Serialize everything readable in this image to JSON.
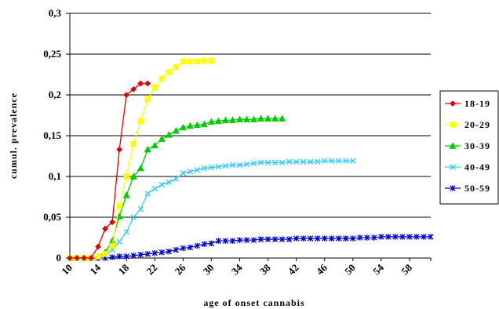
{
  "chart_data": {
    "type": "line",
    "xlabel": "age of onset cannabis",
    "ylabel": "cumul. prevalence",
    "xlim": [
      10,
      61
    ],
    "ylim": [
      0,
      0.3
    ],
    "x_ticks": [
      "10",
      "14",
      "18",
      "22",
      "26",
      "30",
      "34",
      "38",
      "42",
      "46",
      "50",
      "54",
      "58"
    ],
    "y_ticks": [
      "0",
      "0,05",
      "0,1",
      "0,15",
      "0,2",
      "0,25",
      "0,3"
    ],
    "grid": true,
    "legend_position": "right",
    "series": [
      {
        "name": "18-19",
        "color": "#e00000",
        "marker": "diamond",
        "x": [
          10,
          11,
          12,
          13,
          14,
          15,
          16,
          17,
          18,
          19,
          20,
          21
        ],
        "values": [
          0,
          0,
          0,
          0,
          0.014,
          0.036,
          0.044,
          0.133,
          0.2,
          0.207,
          0.214,
          0.214
        ]
      },
      {
        "name": "20-29",
        "color": "#ffff00",
        "marker": "square",
        "x": [
          10,
          11,
          12,
          13,
          14,
          15,
          16,
          17,
          18,
          19,
          20,
          21,
          22,
          23,
          24,
          25,
          26,
          27,
          28,
          29,
          30
        ],
        "values": [
          0,
          0,
          0,
          0,
          0.002,
          0.005,
          0.015,
          0.064,
          0.1,
          0.14,
          0.168,
          0.195,
          0.209,
          0.22,
          0.228,
          0.234,
          0.241,
          0.241,
          0.241,
          0.242,
          0.242
        ]
      },
      {
        "name": "30-39",
        "color": "#00cc00",
        "marker": "triangle",
        "x": [
          10,
          11,
          12,
          13,
          14,
          15,
          16,
          17,
          18,
          19,
          20,
          21,
          22,
          23,
          24,
          25,
          26,
          27,
          28,
          29,
          30,
          31,
          32,
          33,
          34,
          35,
          36,
          37,
          38,
          39,
          40
        ],
        "values": [
          0,
          0,
          0,
          0,
          0.002,
          0.007,
          0.021,
          0.051,
          0.077,
          0.1,
          0.11,
          0.133,
          0.138,
          0.146,
          0.151,
          0.156,
          0.16,
          0.162,
          0.163,
          0.164,
          0.167,
          0.168,
          0.169,
          0.169,
          0.17,
          0.17,
          0.17,
          0.171,
          0.171,
          0.171,
          0.171
        ]
      },
      {
        "name": "40-49",
        "color": "#33ccff",
        "marker": "x",
        "x": [
          10,
          11,
          12,
          13,
          14,
          15,
          16,
          17,
          18,
          19,
          20,
          21,
          22,
          23,
          24,
          25,
          26,
          27,
          28,
          29,
          30,
          31,
          32,
          33,
          34,
          35,
          36,
          37,
          38,
          39,
          40,
          41,
          42,
          43,
          44,
          45,
          46,
          47,
          48,
          49,
          50
        ],
        "values": [
          0,
          0,
          0,
          0,
          0.001,
          0.003,
          0.01,
          0.02,
          0.032,
          0.05,
          0.06,
          0.079,
          0.085,
          0.09,
          0.093,
          0.097,
          0.104,
          0.106,
          0.108,
          0.11,
          0.111,
          0.112,
          0.113,
          0.114,
          0.114,
          0.115,
          0.116,
          0.117,
          0.117,
          0.117,
          0.117,
          0.118,
          0.118,
          0.118,
          0.118,
          0.118,
          0.119,
          0.119,
          0.119,
          0.119,
          0.119
        ]
      },
      {
        "name": "50-59",
        "color": "#0000cc",
        "marker": "asterisk",
        "x": [
          10,
          11,
          12,
          13,
          14,
          15,
          16,
          17,
          18,
          19,
          20,
          21,
          22,
          23,
          24,
          25,
          26,
          27,
          28,
          29,
          30,
          31,
          32,
          33,
          34,
          35,
          36,
          37,
          38,
          39,
          40,
          41,
          42,
          43,
          44,
          45,
          46,
          47,
          48,
          49,
          50,
          51,
          52,
          53,
          54,
          55,
          56,
          57,
          58,
          59,
          60,
          61
        ],
        "values": [
          0,
          0,
          0,
          0,
          0,
          0,
          0.001,
          0.002,
          0.002,
          0.003,
          0.004,
          0.005,
          0.006,
          0.007,
          0.008,
          0.01,
          0.012,
          0.013,
          0.015,
          0.017,
          0.018,
          0.021,
          0.021,
          0.021,
          0.022,
          0.022,
          0.022,
          0.023,
          0.023,
          0.023,
          0.023,
          0.023,
          0.024,
          0.024,
          0.024,
          0.024,
          0.024,
          0.024,
          0.024,
          0.024,
          0.024,
          0.025,
          0.025,
          0.025,
          0.026,
          0.026,
          0.026,
          0.026,
          0.026,
          0.026,
          0.026,
          0.026
        ]
      }
    ]
  }
}
